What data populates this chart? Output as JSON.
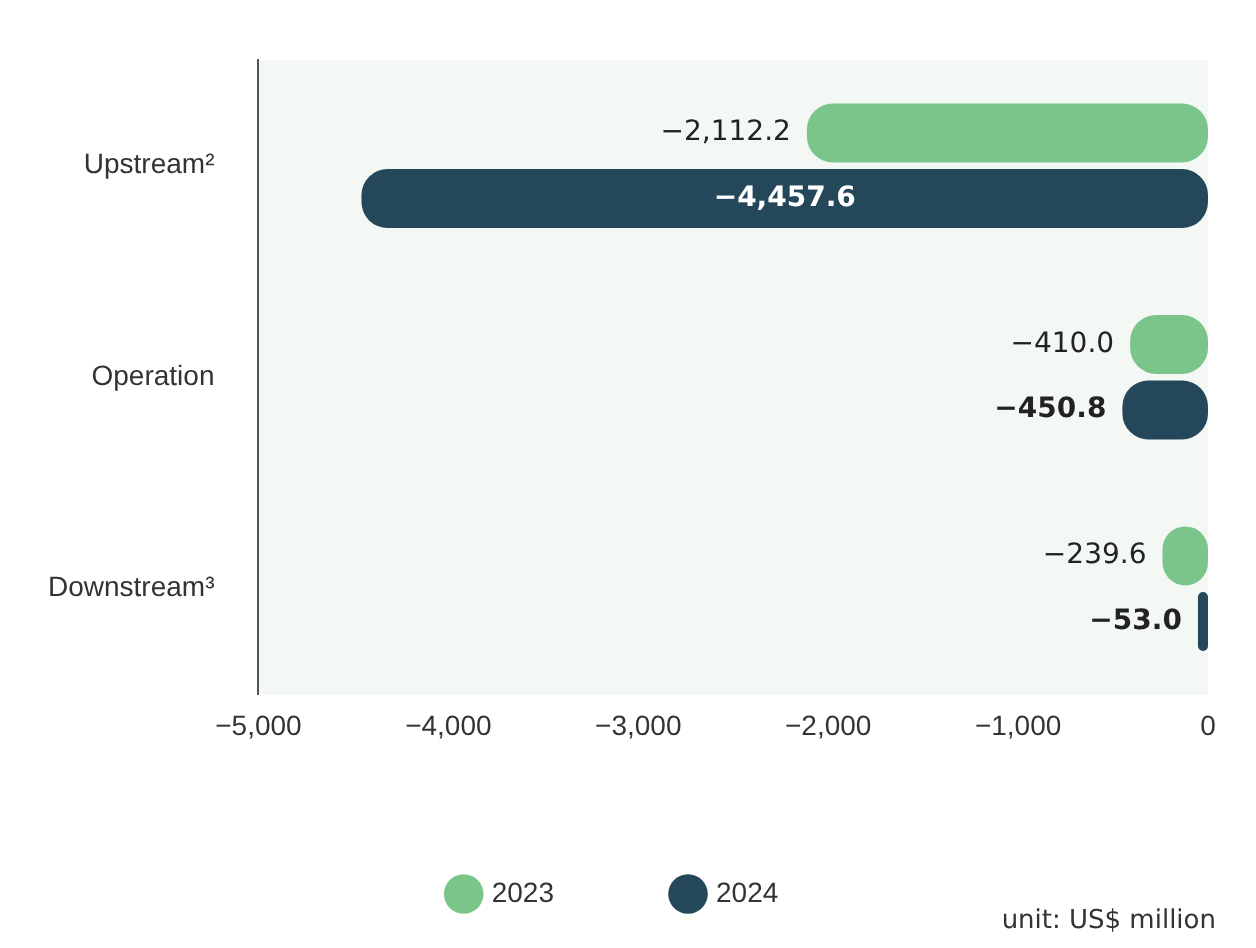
{
  "chart_data": {
    "type": "bar",
    "orientation": "horizontal",
    "categories": [
      "Upstream²",
      "Operation",
      "Downstream³"
    ],
    "series": [
      {
        "name": "2023",
        "color": "#7cc58a",
        "values": [
          -2112.2,
          -410.0,
          -239.6
        ],
        "value_labels": [
          "−2,112.2",
          "−410.0",
          "−239.6"
        ]
      },
      {
        "name": "2024",
        "color": "#24485a",
        "values": [
          -4457.6,
          -450.8,
          -53.0
        ],
        "value_labels": [
          "−4,457.6",
          "−450.8",
          "−53.0"
        ]
      }
    ],
    "xlim": [
      -5000,
      0
    ],
    "xticks": [
      {
        "value": -5000,
        "label": "−5,000"
      },
      {
        "value": -4000,
        "label": "−4,000"
      },
      {
        "value": -3000,
        "label": "−3,000"
      },
      {
        "value": -2000,
        "label": "−2,000"
      },
      {
        "value": -1000,
        "label": "−1,000"
      },
      0
    ],
    "grid": false,
    "legend": "bottom",
    "annotations": [
      "unit: US$ million"
    ]
  }
}
